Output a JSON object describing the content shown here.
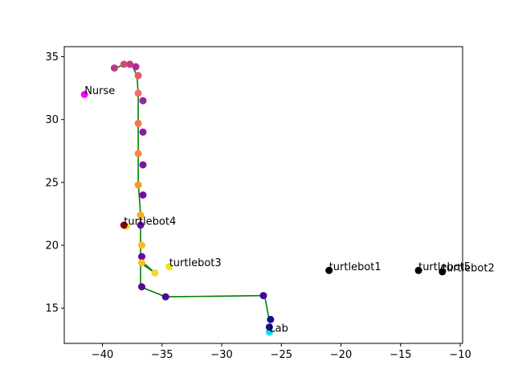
{
  "chart_data": {
    "type": "scatter",
    "title": "",
    "xlabel": "",
    "ylabel": "",
    "xlim": [
      -43.2,
      -9.8
    ],
    "ylim": [
      12.2,
      35.8
    ],
    "grid": false,
    "xticks": [
      -40,
      -35,
      -30,
      -25,
      -20,
      -15,
      -10
    ],
    "yticks": [
      15,
      20,
      25,
      30,
      35
    ],
    "path": {
      "color": "#008000",
      "points": [
        [
          -26.0,
          14.0
        ],
        [
          -26.4,
          16.0
        ],
        [
          -34.7,
          15.9
        ],
        [
          -36.8,
          16.7
        ],
        [
          -36.8,
          22.5
        ],
        [
          -37.0,
          25.0
        ],
        [
          -37.0,
          32.0
        ],
        [
          -37.1,
          33.5
        ],
        [
          -37.5,
          34.3
        ],
        [
          -38.0,
          34.4
        ],
        [
          -39.0,
          34.1
        ]
      ]
    },
    "path2": {
      "color": "#008000",
      "points": [
        [
          -36.8,
          18.8
        ],
        [
          -35.6,
          17.8
        ],
        [
          -36.8,
          18.6
        ]
      ]
    },
    "points": [
      {
        "x": -26.0,
        "y": 13.1,
        "color": "#00e5ee"
      },
      {
        "x": -26.0,
        "y": 13.5,
        "color": "#1a0a9a"
      },
      {
        "x": -25.9,
        "y": 14.1,
        "color": "#1a0a9a"
      },
      {
        "x": -26.5,
        "y": 16.0,
        "color": "#3d0a9a"
      },
      {
        "x": -34.7,
        "y": 15.9,
        "color": "#4a0a9a"
      },
      {
        "x": -36.7,
        "y": 16.7,
        "color": "#5a0a9a"
      },
      {
        "x": -36.7,
        "y": 19.1,
        "color": "#620aa0"
      },
      {
        "x": -36.8,
        "y": 21.6,
        "color": "#6a0aa0"
      },
      {
        "x": -36.6,
        "y": 24.0,
        "color": "#780aa5"
      },
      {
        "x": -36.6,
        "y": 26.4,
        "color": "#8010a8"
      },
      {
        "x": -36.6,
        "y": 29.0,
        "color": "#8c18a8"
      },
      {
        "x": -36.6,
        "y": 31.5,
        "color": "#9a22a4"
      },
      {
        "x": -37.2,
        "y": 34.2,
        "color": "#ad2a9a"
      },
      {
        "x": -37.7,
        "y": 34.4,
        "color": "#c03a88"
      },
      {
        "x": -38.2,
        "y": 34.4,
        "color": "#d04a7a"
      },
      {
        "x": -39.0,
        "y": 34.1,
        "color": "#bc3a8a"
      },
      {
        "x": -37.0,
        "y": 33.5,
        "color": "#e06060"
      },
      {
        "x": -37.0,
        "y": 32.1,
        "color": "#ee7060"
      },
      {
        "x": -37.0,
        "y": 29.7,
        "color": "#f07a4c"
      },
      {
        "x": -37.0,
        "y": 27.3,
        "color": "#f48a40"
      },
      {
        "x": -37.0,
        "y": 24.8,
        "color": "#f89a30"
      },
      {
        "x": -36.8,
        "y": 22.4,
        "color": "#fba828"
      },
      {
        "x": -36.7,
        "y": 20.0,
        "color": "#fcba22"
      },
      {
        "x": -36.7,
        "y": 18.6,
        "color": "#f8c020"
      },
      {
        "x": -35.6,
        "y": 17.8,
        "color": "#f4d830"
      },
      {
        "x": -38.0,
        "y": 21.5,
        "color": "#f4d830"
      },
      {
        "x": -41.5,
        "y": 32.0,
        "color": "#ff00ff"
      },
      {
        "x": -34.4,
        "y": 18.3,
        "color": "#f0e020"
      },
      {
        "x": -38.2,
        "y": 21.6,
        "color": "#8b0000"
      },
      {
        "x": -21.0,
        "y": 18.0,
        "color": "#000000"
      },
      {
        "x": -13.5,
        "y": 18.0,
        "color": "#000000"
      },
      {
        "x": -11.5,
        "y": 17.9,
        "color": "#000000"
      }
    ],
    "annotations": [
      {
        "x": -41.5,
        "y": 32.0,
        "text": "Nurse"
      },
      {
        "x": -38.2,
        "y": 21.6,
        "text": "turtlebot4"
      },
      {
        "x": -34.4,
        "y": 18.3,
        "text": "turtlebot3"
      },
      {
        "x": -21.0,
        "y": 18.0,
        "text": "turtlebot1"
      },
      {
        "x": -13.5,
        "y": 18.0,
        "text": "turtlebot5"
      },
      {
        "x": -11.5,
        "y": 17.9,
        "text": "turtlebot2"
      },
      {
        "x": -26.0,
        "y": 13.1,
        "text": "Lab"
      }
    ]
  }
}
